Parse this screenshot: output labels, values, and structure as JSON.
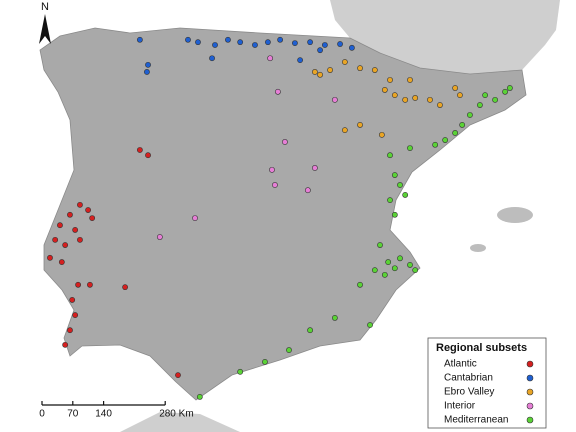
{
  "north": "N",
  "scale": {
    "ticks": [
      0,
      70,
      140,
      {
        "value": 280,
        "label": "280 Km"
      }
    ]
  },
  "legend": {
    "title": "Regional subsets"
  },
  "subsets": [
    {
      "name": "Atlantic",
      "color": "#d42020",
      "points": [
        [
          -7.03,
          41.28
        ],
        [
          -6.81,
          41.17
        ],
        [
          -8.65,
          40.12
        ],
        [
          -8.43,
          40.01
        ],
        [
          -8.92,
          39.91
        ],
        [
          -8.32,
          39.84
        ],
        [
          -9.19,
          39.69
        ],
        [
          -8.78,
          39.59
        ],
        [
          -9.32,
          39.38
        ],
        [
          -9.05,
          39.27
        ],
        [
          -8.65,
          39.38
        ],
        [
          -9.46,
          39.0
        ],
        [
          -9.14,
          38.91
        ],
        [
          -8.7,
          38.43
        ],
        [
          -8.38,
          38.43
        ],
        [
          -7.43,
          38.38
        ],
        [
          -8.86,
          38.11
        ],
        [
          -8.78,
          37.79
        ],
        [
          -8.92,
          37.47
        ],
        [
          -9.05,
          37.16
        ],
        [
          -6.0,
          36.52
        ]
      ]
    },
    {
      "name": "Cantabrian",
      "color": "#1f5fd0",
      "points": [
        [
          -5.73,
          43.61
        ],
        [
          -5.46,
          43.56
        ],
        [
          -5.0,
          43.5
        ],
        [
          -4.65,
          43.61
        ],
        [
          -4.32,
          43.56
        ],
        [
          -3.92,
          43.5
        ],
        [
          -3.57,
          43.56
        ],
        [
          -3.24,
          43.61
        ],
        [
          -2.84,
          43.54
        ],
        [
          -2.43,
          43.56
        ],
        [
          -2.03,
          43.5
        ],
        [
          -1.62,
          43.52
        ],
        [
          -1.3,
          43.44
        ],
        [
          -5.08,
          43.22
        ],
        [
          -6.81,
          43.08
        ],
        [
          -6.84,
          42.93
        ],
        [
          -7.03,
          43.61
        ],
        [
          -2.7,
          43.18
        ],
        [
          -2.16,
          43.39
        ]
      ]
    },
    {
      "name": "Ebro Valley",
      "color": "#e9a526",
      "points": [
        [
          -2.16,
          42.87
        ],
        [
          -1.89,
          42.97
        ],
        [
          -1.49,
          43.14
        ],
        [
          -1.08,
          43.01
        ],
        [
          -2.3,
          42.93
        ],
        [
          -0.27,
          42.76
        ],
        [
          -0.14,
          42.44
        ],
        [
          0.14,
          42.34
        ],
        [
          0.41,
          42.38
        ],
        [
          0.81,
          42.34
        ],
        [
          1.08,
          42.23
        ],
        [
          1.49,
          42.59
        ],
        [
          1.62,
          42.44
        ],
        [
          -0.41,
          42.55
        ],
        [
          -1.08,
          41.81
        ],
        [
          -1.49,
          41.7
        ],
        [
          -0.49,
          41.6
        ],
        [
          -0.68,
          42.97
        ],
        [
          0.27,
          42.76
        ]
      ]
    },
    {
      "name": "Interior",
      "color": "#e67fd6",
      "points": [
        [
          -3.51,
          43.22
        ],
        [
          -3.3,
          42.51
        ],
        [
          -1.76,
          42.34
        ],
        [
          -3.11,
          41.45
        ],
        [
          -3.46,
          40.86
        ],
        [
          -2.3,
          40.9
        ],
        [
          -2.49,
          40.43
        ],
        [
          -5.54,
          39.84
        ],
        [
          -6.49,
          39.44
        ],
        [
          -3.38,
          40.54
        ]
      ]
    },
    {
      "name": "Mediterranean",
      "color": "#5ad236",
      "points": [
        [
          2.3,
          42.44
        ],
        [
          2.57,
          42.34
        ],
        [
          2.84,
          42.51
        ],
        [
          2.97,
          42.59
        ],
        [
          2.16,
          42.23
        ],
        [
          1.89,
          42.02
        ],
        [
          1.68,
          41.81
        ],
        [
          1.49,
          41.64
        ],
        [
          1.22,
          41.49
        ],
        [
          0.95,
          41.39
        ],
        [
          0.27,
          41.32
        ],
        [
          -0.27,
          41.17
        ],
        [
          -0.14,
          40.75
        ],
        [
          0.0,
          40.54
        ],
        [
          0.14,
          40.33
        ],
        [
          -0.27,
          40.22
        ],
        [
          -0.14,
          39.91
        ],
        [
          -0.54,
          39.27
        ],
        [
          -0.32,
          38.91
        ],
        [
          -0.14,
          38.78
        ],
        [
          0.0,
          38.99
        ],
        [
          0.27,
          38.85
        ],
        [
          0.41,
          38.74
        ],
        [
          -0.68,
          38.74
        ],
        [
          -0.41,
          38.64
        ],
        [
          -1.08,
          38.43
        ],
        [
          -0.81,
          37.58
        ],
        [
          -1.76,
          37.73
        ],
        [
          -2.43,
          37.47
        ],
        [
          -3.0,
          37.05
        ],
        [
          -3.65,
          36.8
        ],
        [
          -4.32,
          36.59
        ],
        [
          -5.41,
          36.06
        ]
      ]
    }
  ]
}
